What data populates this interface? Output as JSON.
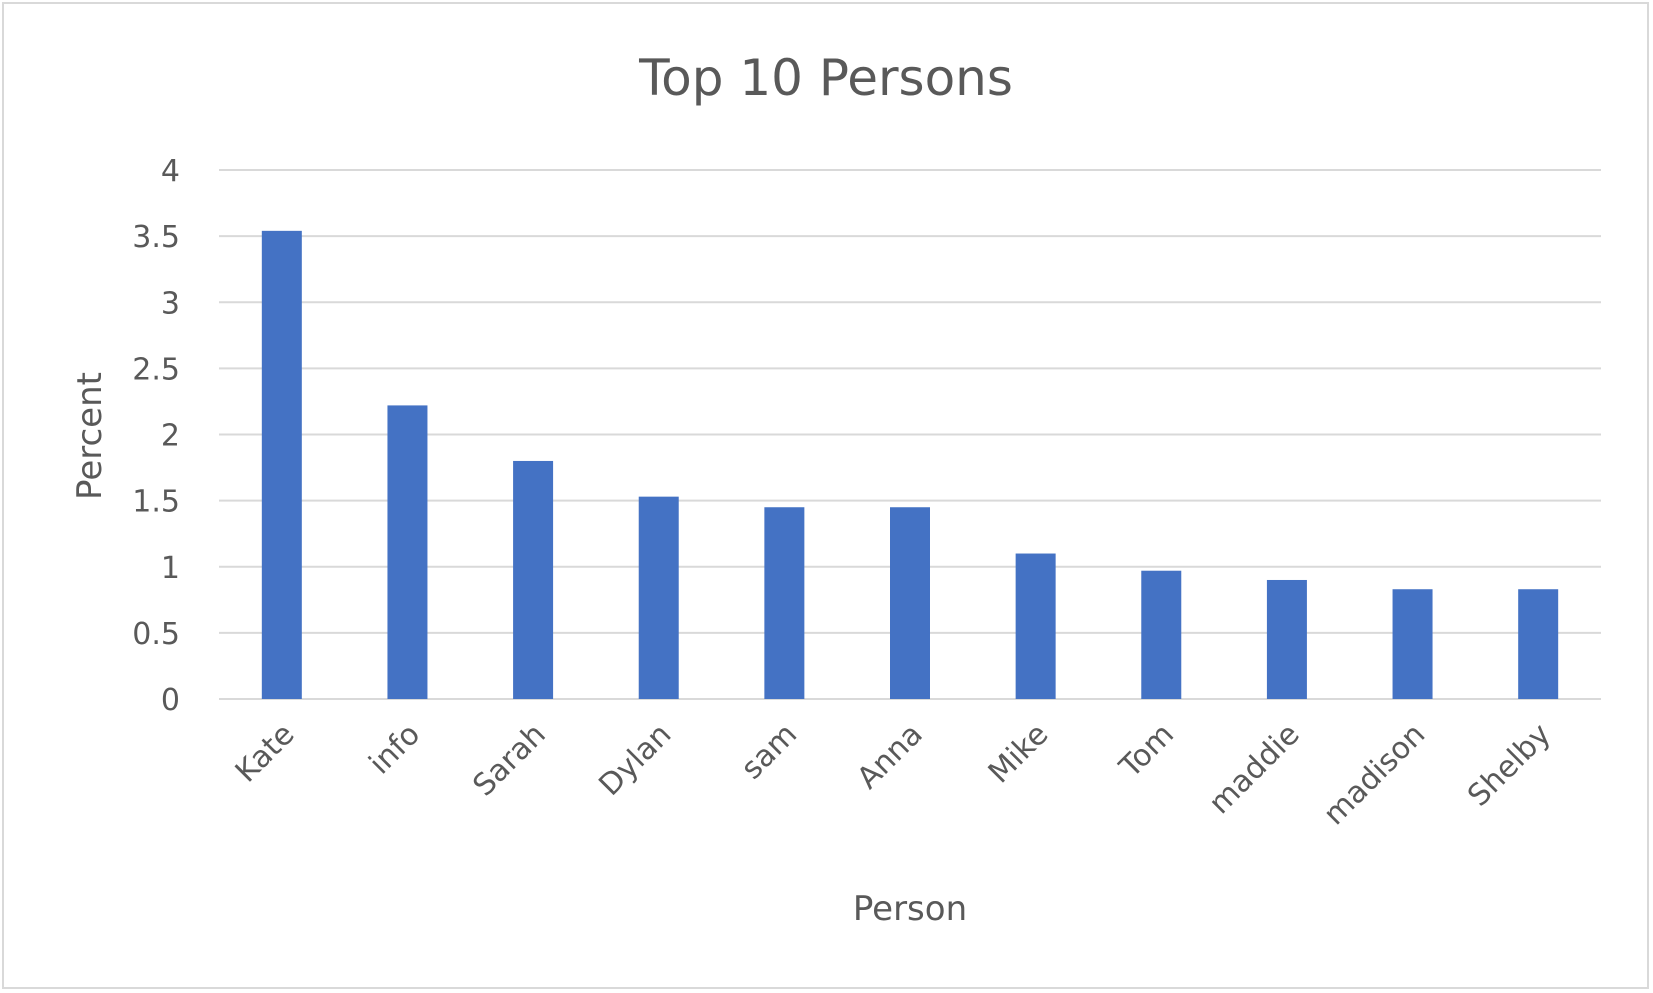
{
  "chart_data": {
    "type": "bar",
    "title": "Top 10 Persons",
    "xlabel": "Person",
    "ylabel": "Percent",
    "categories": [
      "Kate",
      "info",
      "Sarah",
      "Dylan",
      "sam",
      "Anna",
      "Mike",
      "Tom",
      "maddie",
      "madison",
      "Shelby"
    ],
    "values": [
      3.54,
      2.22,
      1.8,
      1.53,
      1.45,
      1.45,
      1.1,
      0.97,
      0.9,
      0.83,
      0.83
    ],
    "ylim": [
      0,
      4
    ],
    "yticks": [
      "0",
      "0.5",
      "1",
      "1.5",
      "2",
      "2.5",
      "3",
      "3.5",
      "4"
    ],
    "grid": true,
    "legend": "none",
    "colors": {
      "bar": "#4472c4",
      "grid": "#d9d9d9",
      "text": "#595959",
      "border": "#d9d9d9"
    }
  }
}
